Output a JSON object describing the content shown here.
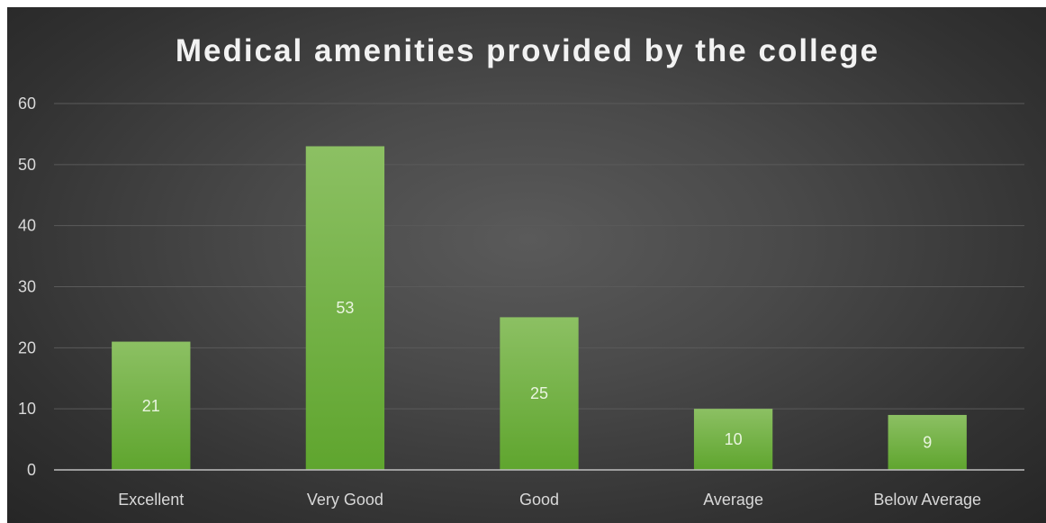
{
  "chart_data": {
    "type": "bar",
    "title": "Medical amenities provided by the college",
    "categories": [
      "Excellent",
      "Very Good",
      "Good",
      "Average",
      "Below Average"
    ],
    "values": [
      21,
      53,
      25,
      10,
      9
    ],
    "data_labels": [
      "21",
      "53",
      "25",
      "10",
      "9"
    ],
    "xlabel": "",
    "ylabel": "",
    "ylim": [
      0,
      60
    ],
    "y_ticks": [
      "0",
      "10",
      "20",
      "30",
      "40",
      "50",
      "60"
    ],
    "grid": true,
    "legend": "none",
    "colors": {
      "bar": "#6aad3a",
      "bar_top": "#8cc063",
      "background": "#404040",
      "gridline": "#5a5a5a",
      "axis_line": "#bfbfbf",
      "text": "#d9d9d9"
    }
  }
}
